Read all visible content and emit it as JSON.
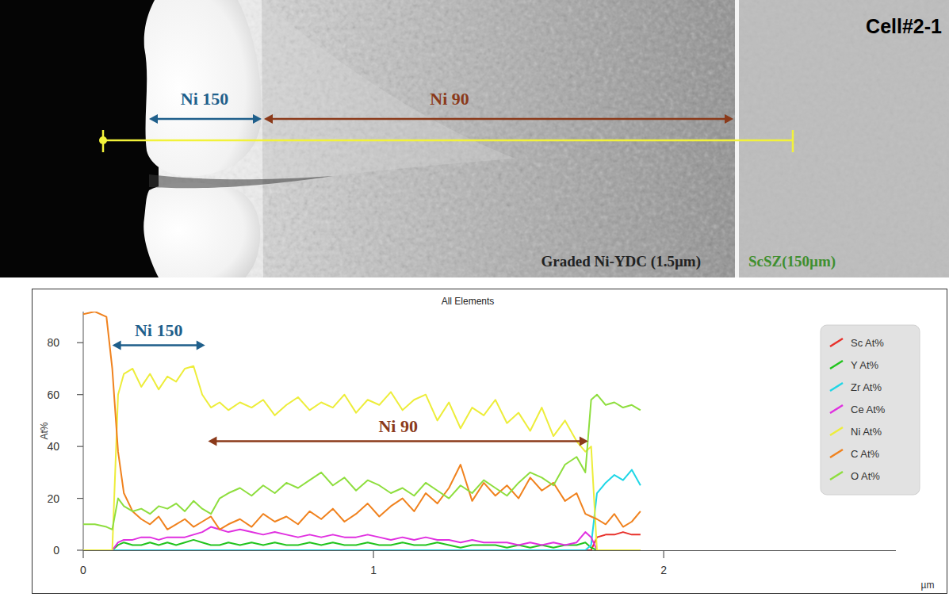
{
  "micrograph": {
    "label": "Cell#2-1",
    "regions": [
      {
        "label": "Ni 150",
        "color": "#1f5f8b"
      },
      {
        "label": "Ni 90",
        "color": "#8b3a1a"
      }
    ],
    "layers": [
      {
        "label": "Graded Ni-YDC (1.5µm)",
        "color": "#222222"
      },
      {
        "label": "ScSZ(150µm)",
        "color": "#3f8f2f"
      }
    ]
  },
  "chart_data": {
    "type": "line",
    "title": "All Elements",
    "y_label": "At%",
    "x_label": "µm",
    "xlim": [
      0,
      2.8
    ],
    "xticks": [
      0,
      1,
      2
    ],
    "ylim": [
      0,
      92
    ],
    "yticks": [
      0,
      20,
      40,
      60,
      80
    ],
    "legend": "upper right",
    "x": [
      0,
      0.04,
      0.08,
      0.1,
      0.12,
      0.14,
      0.17,
      0.2,
      0.23,
      0.26,
      0.29,
      0.32,
      0.35,
      0.38,
      0.41,
      0.44,
      0.47,
      0.5,
      0.54,
      0.58,
      0.62,
      0.66,
      0.7,
      0.74,
      0.78,
      0.82,
      0.86,
      0.9,
      0.94,
      0.98,
      1.02,
      1.06,
      1.1,
      1.14,
      1.18,
      1.22,
      1.26,
      1.3,
      1.34,
      1.38,
      1.42,
      1.46,
      1.5,
      1.54,
      1.58,
      1.62,
      1.66,
      1.7,
      1.73,
      1.75,
      1.77,
      1.8,
      1.83,
      1.86,
      1.89,
      1.92
    ],
    "series": [
      {
        "name": "Sc At%",
        "color": "#e8302a",
        "values": [
          0,
          0,
          0,
          0,
          0,
          0,
          0,
          0,
          0,
          0,
          0,
          0,
          0,
          0,
          0,
          0,
          0,
          0,
          0,
          0,
          0,
          0,
          0,
          0,
          0,
          0,
          0,
          0,
          0,
          0,
          0,
          0,
          0,
          0,
          0,
          0,
          0,
          0,
          0,
          0,
          0,
          0,
          0,
          0,
          0,
          0,
          0,
          0,
          0,
          0,
          5,
          6,
          6,
          7,
          6,
          6
        ]
      },
      {
        "name": "Y At%",
        "color": "#22c41e",
        "values": [
          0,
          0,
          0,
          0,
          2,
          3,
          2,
          2,
          3,
          2,
          3,
          2,
          3,
          4,
          3,
          2,
          2,
          3,
          2,
          3,
          2,
          3,
          2,
          2,
          3,
          2,
          3,
          2,
          2,
          3,
          2,
          2,
          3,
          2,
          2,
          3,
          2,
          1,
          2,
          2,
          2,
          1,
          2,
          1,
          2,
          1,
          2,
          2,
          3,
          1,
          0,
          0,
          0,
          0,
          0,
          0
        ]
      },
      {
        "name": "Zr At%",
        "color": "#1fd6e6",
        "values": [
          0,
          0,
          0,
          0,
          0,
          0,
          0,
          0,
          0,
          0,
          0,
          0,
          0,
          0,
          0,
          0,
          0,
          0,
          0,
          0,
          0,
          0,
          0,
          0,
          0,
          0,
          0,
          0,
          0,
          0,
          0,
          0,
          0,
          0,
          0,
          0,
          0,
          0,
          0,
          0,
          0,
          0,
          0,
          0,
          0,
          0,
          0,
          0,
          0,
          2,
          22,
          26,
          29,
          27,
          31,
          25
        ]
      },
      {
        "name": "Ce At%",
        "color": "#e030e0",
        "values": [
          0,
          0,
          0,
          0,
          3,
          4,
          4,
          5,
          5,
          4,
          5,
          5,
          5,
          6,
          7,
          9,
          8,
          7,
          8,
          7,
          6,
          7,
          6,
          5,
          6,
          5,
          6,
          5,
          5,
          6,
          5,
          4,
          5,
          4,
          5,
          4,
          4,
          3,
          4,
          3,
          3,
          3,
          2,
          3,
          2,
          3,
          2,
          3,
          7,
          5,
          0,
          0,
          0,
          0,
          0,
          0
        ]
      },
      {
        "name": "Ni At%",
        "color": "#eded3a",
        "values": [
          0,
          0,
          0,
          0,
          60,
          68,
          70,
          63,
          68,
          62,
          67,
          65,
          70,
          71,
          60,
          55,
          57,
          54,
          57,
          55,
          58,
          52,
          56,
          59,
          54,
          57,
          55,
          60,
          53,
          58,
          56,
          61,
          54,
          58,
          60,
          50,
          57,
          47,
          55,
          52,
          58,
          49,
          53,
          46,
          55,
          44,
          50,
          42,
          38,
          40,
          0,
          0,
          0,
          0,
          0,
          0
        ]
      },
      {
        "name": "C At%",
        "color": "#f0821e",
        "values": [
          91,
          92,
          90,
          70,
          38,
          22,
          15,
          12,
          10,
          13,
          8,
          10,
          12,
          9,
          11,
          13,
          8,
          10,
          12,
          9,
          14,
          11,
          13,
          10,
          15,
          12,
          16,
          11,
          14,
          18,
          13,
          17,
          20,
          15,
          22,
          18,
          24,
          33,
          19,
          26,
          21,
          25,
          20,
          28,
          23,
          26,
          19,
          22,
          14,
          13,
          12,
          10,
          14,
          9,
          11,
          15
        ]
      },
      {
        "name": "O At%",
        "color": "#8ede3e",
        "values": [
          10,
          10,
          9,
          8,
          20,
          17,
          15,
          16,
          14,
          17,
          16,
          18,
          15,
          19,
          16,
          14,
          20,
          22,
          24,
          21,
          25,
          22,
          26,
          24,
          27,
          30,
          25,
          28,
          23,
          27,
          25,
          22,
          24,
          21,
          26,
          23,
          20,
          25,
          22,
          27,
          24,
          21,
          26,
          30,
          28,
          25,
          33,
          36,
          30,
          58,
          60,
          56,
          57,
          55,
          56,
          54
        ]
      }
    ],
    "annotations": [
      {
        "text": "Ni 150",
        "color": "#1f5f8b",
        "x": [
          0.1,
          0.42
        ],
        "y": 79
      },
      {
        "text": "Ni 90",
        "color": "#8b3a1a",
        "x": [
          0.43,
          1.74
        ],
        "y": 42
      }
    ]
  }
}
